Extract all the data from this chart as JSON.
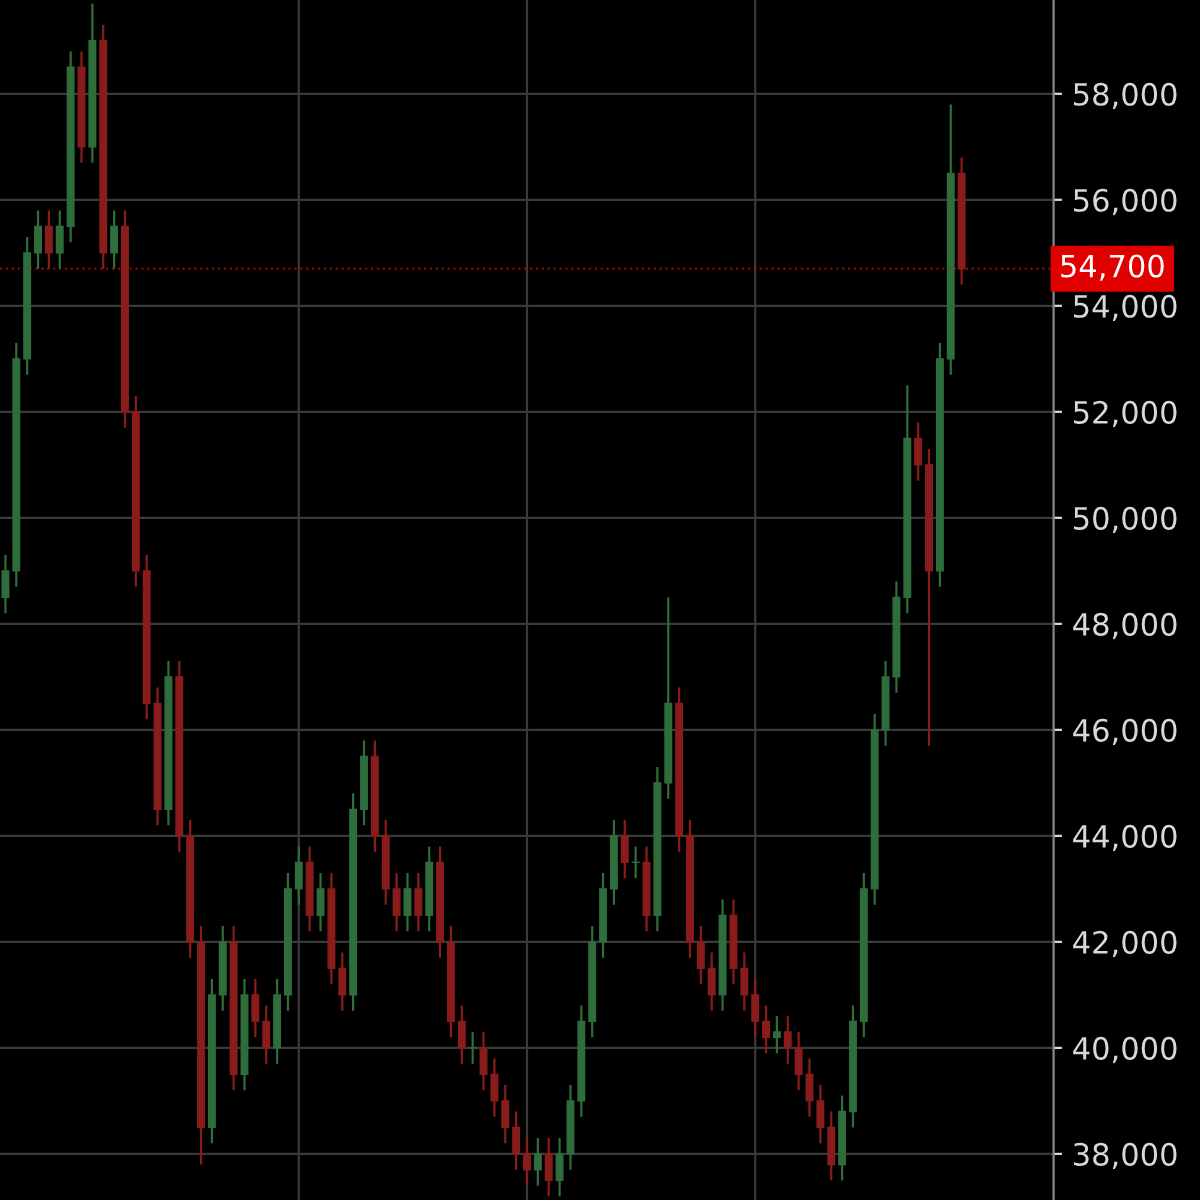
{
  "chart_data": {
    "type": "candlestick",
    "categories": [
      null,
      null,
      null,
      null,
      null,
      null,
      null,
      null,
      null,
      null,
      null,
      null,
      null,
      null,
      null,
      null,
      null,
      null,
      null,
      null,
      null,
      null,
      null,
      null,
      null,
      null,
      null,
      null,
      null,
      null,
      null,
      null,
      null,
      null,
      null,
      null,
      null,
      null,
      null,
      null,
      null,
      null,
      null,
      null,
      null,
      null,
      null,
      null,
      null,
      null,
      null,
      null,
      null,
      null,
      null,
      null,
      null,
      null,
      null,
      null,
      null,
      null,
      null,
      null,
      null,
      null,
      null,
      null,
      null,
      null,
      null,
      null,
      null,
      null,
      null,
      null,
      null,
      null,
      null,
      null,
      null,
      null,
      null,
      null,
      null,
      null,
      null,
      null,
      null
    ],
    "ohlc": [
      [
        48500,
        49300,
        48200,
        49000
      ],
      [
        49000,
        53300,
        48700,
        53000
      ],
      [
        53000,
        55300,
        52700,
        55000
      ],
      [
        55000,
        55800,
        54700,
        55500
      ],
      [
        55500,
        55800,
        54700,
        55000
      ],
      [
        55000,
        55800,
        54700,
        55500
      ],
      [
        55500,
        58800,
        55200,
        58500
      ],
      [
        58500,
        58800,
        56700,
        57000
      ],
      [
        57000,
        59700,
        56700,
        59000
      ],
      [
        59000,
        59300,
        54700,
        55000
      ],
      [
        55000,
        55800,
        54700,
        55500
      ],
      [
        55500,
        55800,
        51700,
        52000
      ],
      [
        52000,
        52300,
        48700,
        49000
      ],
      [
        49000,
        49300,
        46200,
        46500
      ],
      [
        46500,
        46800,
        44200,
        44500
      ],
      [
        44500,
        47300,
        44200,
        47000
      ],
      [
        47000,
        47300,
        43700,
        44000
      ],
      [
        44000,
        44300,
        41700,
        42000
      ],
      [
        42000,
        42300,
        37800,
        38500
      ],
      [
        38500,
        41300,
        38200,
        41000
      ],
      [
        41000,
        42300,
        40700,
        42000
      ],
      [
        42000,
        42300,
        39200,
        39500
      ],
      [
        39500,
        41300,
        39200,
        41000
      ],
      [
        41000,
        41300,
        40200,
        40500
      ],
      [
        40500,
        40800,
        39700,
        40000
      ],
      [
        40000,
        41300,
        39700,
        41000
      ],
      [
        41000,
        43300,
        40700,
        43000
      ],
      [
        43000,
        43800,
        42700,
        43500
      ],
      [
        43500,
        43800,
        42200,
        42500
      ],
      [
        42500,
        43300,
        42200,
        43000
      ],
      [
        43000,
        43300,
        41200,
        41500
      ],
      [
        41500,
        41800,
        40700,
        41000
      ],
      [
        41000,
        44800,
        40700,
        44500
      ],
      [
        44500,
        45800,
        44200,
        45500
      ],
      [
        45500,
        45800,
        43700,
        44000
      ],
      [
        44000,
        44300,
        42700,
        43000
      ],
      [
        43000,
        43300,
        42200,
        42500
      ],
      [
        42500,
        43300,
        42200,
        43000
      ],
      [
        43000,
        43300,
        42200,
        42500
      ],
      [
        42500,
        43800,
        42200,
        43500
      ],
      [
        43500,
        43800,
        41700,
        42000
      ],
      [
        42000,
        42300,
        40200,
        40500
      ],
      [
        40500,
        40800,
        39700,
        40000
      ],
      [
        40000,
        40300,
        39700,
        40000
      ],
      [
        40000,
        40300,
        39200,
        39500
      ],
      [
        39500,
        39800,
        38700,
        39000
      ],
      [
        39000,
        39300,
        38200,
        38500
      ],
      [
        38500,
        38800,
        37700,
        38000
      ],
      [
        38000,
        38300,
        37400,
        37700
      ],
      [
        37700,
        38300,
        37400,
        38000
      ],
      [
        38000,
        38300,
        37200,
        37500
      ],
      [
        37500,
        38300,
        37200,
        38000
      ],
      [
        38000,
        39300,
        37700,
        39000
      ],
      [
        39000,
        40800,
        38700,
        40500
      ],
      [
        40500,
        42300,
        40200,
        42000
      ],
      [
        42000,
        43300,
        41700,
        43000
      ],
      [
        43000,
        44300,
        42700,
        44000
      ],
      [
        44000,
        44300,
        43200,
        43500
      ],
      [
        43500,
        43800,
        43200,
        43500
      ],
      [
        43500,
        43800,
        42200,
        42500
      ],
      [
        42500,
        45300,
        42200,
        45000
      ],
      [
        45000,
        48500,
        44700,
        46500
      ],
      [
        46500,
        46800,
        43700,
        44000
      ],
      [
        44000,
        44300,
        41700,
        42000
      ],
      [
        42000,
        42300,
        41200,
        41500
      ],
      [
        41500,
        41800,
        40700,
        41000
      ],
      [
        41000,
        42800,
        40700,
        42500
      ],
      [
        42500,
        42800,
        41200,
        41500
      ],
      [
        41500,
        41800,
        40700,
        41000
      ],
      [
        41000,
        41300,
        40200,
        40500
      ],
      [
        40500,
        40800,
        39900,
        40200
      ],
      [
        40200,
        40600,
        39900,
        40300
      ],
      [
        40300,
        40600,
        39700,
        40000
      ],
      [
        40000,
        40300,
        39200,
        39500
      ],
      [
        39500,
        39800,
        38700,
        39000
      ],
      [
        39000,
        39300,
        38200,
        38500
      ],
      [
        38500,
        38800,
        37500,
        37800
      ],
      [
        37800,
        39100,
        37500,
        38800
      ],
      [
        38800,
        40800,
        38500,
        40500
      ],
      [
        40500,
        43300,
        40200,
        43000
      ],
      [
        43000,
        46300,
        42700,
        46000
      ],
      [
        46000,
        47300,
        45700,
        47000
      ],
      [
        47000,
        48800,
        46700,
        48500
      ],
      [
        48500,
        52500,
        48200,
        51500
      ],
      [
        51500,
        51800,
        50700,
        51000
      ],
      [
        51000,
        51300,
        45700,
        49000
      ],
      [
        49000,
        53300,
        48700,
        53000
      ],
      [
        53000,
        57800,
        52700,
        56500
      ],
      [
        56500,
        56800,
        54400,
        54700
      ]
    ],
    "ylim": [
      37130,
      59770
    ],
    "yticks": [
      {
        "value": 38000,
        "label": "38,000"
      },
      {
        "value": 40000,
        "label": "40,000"
      },
      {
        "value": 42000,
        "label": "42,000"
      },
      {
        "value": 44000,
        "label": "44,000"
      },
      {
        "value": 46000,
        "label": "46,000"
      },
      {
        "value": 48000,
        "label": "48,000"
      },
      {
        "value": 50000,
        "label": "50,000"
      },
      {
        "value": 52000,
        "label": "52,000"
      },
      {
        "value": 54000,
        "label": "54,000"
      },
      {
        "value": 56000,
        "label": "56,000"
      },
      {
        "value": 58000,
        "label": "58,000"
      }
    ],
    "ref_lines": [
      {
        "axis": "y",
        "value": 54700,
        "label": "54,700",
        "color": "#e00000"
      }
    ],
    "grid": true,
    "tick_labels": "y"
  }
}
